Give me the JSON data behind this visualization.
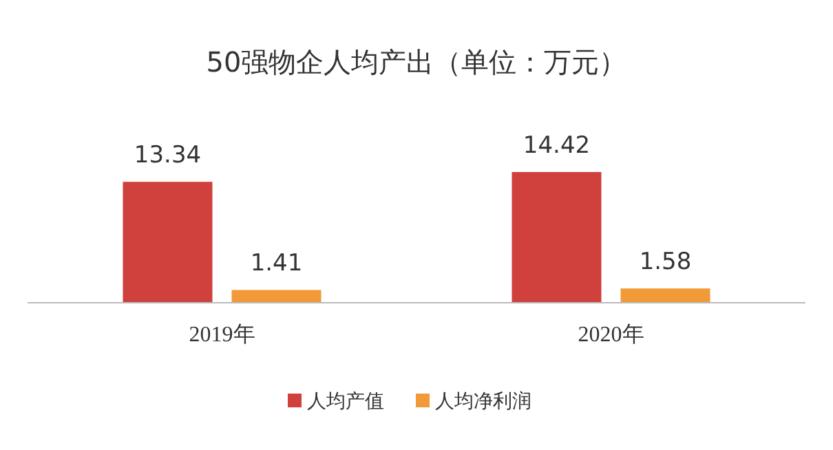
{
  "chart_data": {
    "type": "bar",
    "title": "50强物企人均产出（单位：万元）",
    "categories": [
      "2019年",
      "2020年"
    ],
    "series": [
      {
        "name": "人均产值",
        "color": "#d0403c",
        "values": [
          13.34,
          14.42
        ]
      },
      {
        "name": "人均净利润",
        "color": "#f29a38",
        "values": [
          1.41,
          1.58
        ]
      }
    ],
    "data_labels": true,
    "legend": "bottom"
  }
}
